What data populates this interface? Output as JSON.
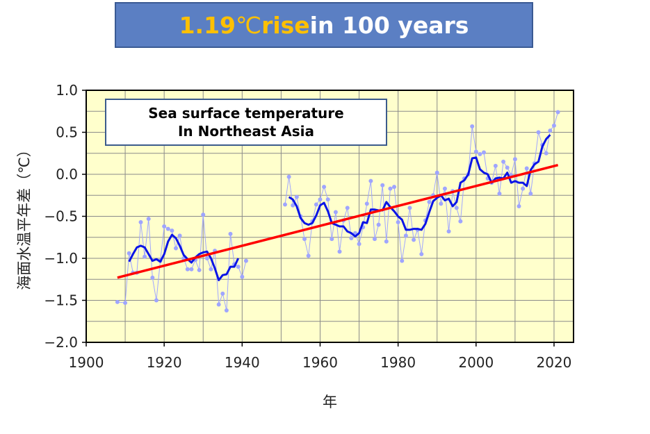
{
  "banner": {
    "highlight_value": "1.19",
    "highlight_unit": "℃",
    "highlight_word": " rise",
    "rest": " in 100 years"
  },
  "inset": {
    "line1": "Sea surface temperature",
    "line2": "In Northeast Asia"
  },
  "chart_data": {
    "type": "line",
    "xlabel": "年",
    "ylabel": "海面水温平年差（℃）",
    "xlim": [
      1900,
      2025
    ],
    "ylim": [
      -2.0,
      1.0
    ],
    "x_ticks": [
      "1900",
      "1920",
      "1940",
      "1960",
      "1980",
      "2000",
      "2020"
    ],
    "y_ticks": [
      "1.0",
      "0.5",
      "0.0",
      "−0.5",
      "−1.0",
      "−1.5",
      "−2.0"
    ],
    "grid": true,
    "colors": {
      "background": "#ffffcc",
      "annual": "#9fa5ff",
      "moving_average": "#0a14e6",
      "trend": "#ff0000"
    },
    "series": [
      {
        "style": "annual",
        "segments": [
          [
            [
              1908,
              -1.52
            ],
            [
              1910,
              -1.53
            ],
            [
              1911,
              -0.94
            ],
            [
              1912,
              -1.17
            ],
            [
              1913,
              -1.17
            ],
            [
              1914,
              -0.57
            ],
            [
              1915,
              -0.98
            ],
            [
              1916,
              -0.53
            ],
            [
              1917,
              -1.23
            ],
            [
              1918,
              -1.5
            ],
            [
              1919,
              -1.03
            ],
            [
              1920,
              -0.62
            ],
            [
              1921,
              -0.65
            ],
            [
              1922,
              -0.67
            ],
            [
              1923,
              -0.88
            ],
            [
              1924,
              -0.73
            ],
            [
              1925,
              -1.0
            ],
            [
              1926,
              -1.13
            ],
            [
              1927,
              -1.13
            ],
            [
              1928,
              -1.02
            ],
            [
              1929,
              -1.14
            ],
            [
              1930,
              -0.48
            ],
            [
              1931,
              -1.0
            ],
            [
              1932,
              -1.13
            ],
            [
              1933,
              -0.91
            ],
            [
              1934,
              -1.55
            ],
            [
              1935,
              -1.42
            ],
            [
              1936,
              -1.62
            ],
            [
              1937,
              -0.71
            ],
            [
              1938,
              -1.07
            ],
            [
              1939,
              -1.1
            ],
            [
              1940,
              -1.22
            ],
            [
              1941,
              -1.03
            ]
          ],
          [
            [
              1951,
              -0.36
            ],
            [
              1952,
              -0.03
            ],
            [
              1953,
              -0.37
            ],
            [
              1954,
              -0.27
            ],
            [
              1955,
              -0.5
            ],
            [
              1956,
              -0.77
            ],
            [
              1957,
              -0.97
            ],
            [
              1958,
              -0.56
            ],
            [
              1959,
              -0.36
            ],
            [
              1960,
              -0.3
            ],
            [
              1961,
              -0.15
            ],
            [
              1962,
              -0.3
            ],
            [
              1963,
              -0.77
            ],
            [
              1964,
              -0.45
            ],
            [
              1965,
              -0.92
            ],
            [
              1966,
              -0.55
            ],
            [
              1967,
              -0.4
            ],
            [
              1968,
              -0.76
            ],
            [
              1969,
              -0.7
            ],
            [
              1970,
              -0.83
            ],
            [
              1971,
              -0.63
            ],
            [
              1972,
              -0.35
            ],
            [
              1973,
              -0.08
            ],
            [
              1974,
              -0.77
            ],
            [
              1975,
              -0.6
            ],
            [
              1976,
              -0.13
            ],
            [
              1977,
              -0.8
            ],
            [
              1978,
              -0.17
            ],
            [
              1979,
              -0.15
            ],
            [
              1980,
              -0.57
            ],
            [
              1981,
              -1.03
            ],
            [
              1982,
              -0.73
            ],
            [
              1983,
              -0.4
            ],
            [
              1984,
              -0.78
            ],
            [
              1985,
              -0.66
            ],
            [
              1986,
              -0.95
            ],
            [
              1987,
              -0.55
            ],
            [
              1988,
              -0.33
            ],
            [
              1989,
              -0.25
            ],
            [
              1990,
              0.02
            ],
            [
              1991,
              -0.35
            ],
            [
              1992,
              -0.17
            ],
            [
              1993,
              -0.68
            ],
            [
              1994,
              -0.2
            ],
            [
              1995,
              -0.4
            ],
            [
              1996,
              -0.56
            ],
            [
              1997,
              -0.05
            ],
            [
              1998,
              0.0
            ],
            [
              1999,
              0.57
            ],
            [
              2000,
              0.27
            ],
            [
              2001,
              0.24
            ],
            [
              2002,
              0.26
            ],
            [
              2003,
              -0.05
            ],
            [
              2004,
              -0.1
            ],
            [
              2005,
              0.1
            ],
            [
              2006,
              -0.23
            ],
            [
              2007,
              0.15
            ],
            [
              2008,
              0.08
            ],
            [
              2009,
              -0.01
            ],
            [
              2010,
              0.18
            ],
            [
              2011,
              -0.38
            ],
            [
              2012,
              -0.17
            ],
            [
              2013,
              0.07
            ],
            [
              2014,
              -0.23
            ],
            [
              2015,
              0.13
            ],
            [
              2016,
              0.5
            ],
            [
              2017,
              0.35
            ],
            [
              2018,
              0.25
            ],
            [
              2019,
              0.52
            ],
            [
              2020,
              0.58
            ],
            [
              2021,
              0.74
            ]
          ]
        ]
      },
      {
        "style": "moving_average",
        "segments": [
          [
            [
              1911,
              -1.04
            ],
            [
              1912,
              -0.95
            ],
            [
              1913,
              -0.87
            ],
            [
              1914,
              -0.85
            ],
            [
              1915,
              -0.87
            ],
            [
              1916,
              -0.95
            ],
            [
              1917,
              -1.03
            ],
            [
              1918,
              -1.01
            ],
            [
              1919,
              -1.04
            ],
            [
              1920,
              -0.95
            ],
            [
              1921,
              -0.8
            ],
            [
              1922,
              -0.72
            ],
            [
              1923,
              -0.76
            ],
            [
              1924,
              -0.85
            ],
            [
              1925,
              -0.96
            ],
            [
              1926,
              -1.01
            ],
            [
              1927,
              -1.05
            ],
            [
              1928,
              -0.99
            ],
            [
              1929,
              -0.95
            ],
            [
              1930,
              -0.93
            ],
            [
              1931,
              -0.92
            ],
            [
              1932,
              -1.0
            ],
            [
              1933,
              -1.12
            ],
            [
              1934,
              -1.26
            ],
            [
              1935,
              -1.2
            ],
            [
              1936,
              -1.19
            ],
            [
              1937,
              -1.1
            ],
            [
              1938,
              -1.1
            ],
            [
              1939,
              -1.0
            ]
          ],
          [
            [
              1952,
              -0.27
            ],
            [
              1953,
              -0.3
            ],
            [
              1954,
              -0.38
            ],
            [
              1955,
              -0.52
            ],
            [
              1956,
              -0.58
            ],
            [
              1957,
              -0.6
            ],
            [
              1958,
              -0.58
            ],
            [
              1959,
              -0.49
            ],
            [
              1960,
              -0.37
            ],
            [
              1961,
              -0.34
            ],
            [
              1962,
              -0.44
            ],
            [
              1963,
              -0.58
            ],
            [
              1964,
              -0.6
            ],
            [
              1965,
              -0.62
            ],
            [
              1966,
              -0.62
            ],
            [
              1967,
              -0.68
            ],
            [
              1968,
              -0.7
            ],
            [
              1969,
              -0.74
            ],
            [
              1970,
              -0.7
            ],
            [
              1971,
              -0.57
            ],
            [
              1972,
              -0.58
            ],
            [
              1973,
              -0.42
            ],
            [
              1974,
              -0.42
            ],
            [
              1975,
              -0.43
            ],
            [
              1976,
              -0.43
            ],
            [
              1977,
              -0.33
            ],
            [
              1978,
              -0.39
            ],
            [
              1979,
              -0.44
            ],
            [
              1980,
              -0.5
            ],
            [
              1981,
              -0.54
            ],
            [
              1982,
              -0.66
            ],
            [
              1983,
              -0.66
            ],
            [
              1984,
              -0.65
            ],
            [
              1985,
              -0.65
            ],
            [
              1986,
              -0.66
            ],
            [
              1987,
              -0.59
            ],
            [
              1988,
              -0.45
            ],
            [
              1989,
              -0.32
            ],
            [
              1990,
              -0.28
            ],
            [
              1991,
              -0.25
            ],
            [
              1992,
              -0.31
            ],
            [
              1993,
              -0.29
            ],
            [
              1994,
              -0.38
            ],
            [
              1995,
              -0.33
            ],
            [
              1996,
              -0.1
            ],
            [
              1997,
              -0.07
            ],
            [
              1998,
              0.0
            ],
            [
              1999,
              0.19
            ],
            [
              2000,
              0.2
            ],
            [
              2001,
              0.06
            ],
            [
              2002,
              0.02
            ],
            [
              2003,
              0.0
            ],
            [
              2004,
              -0.1
            ],
            [
              2005,
              -0.05
            ],
            [
              2006,
              -0.04
            ],
            [
              2007,
              -0.05
            ],
            [
              2008,
              0.02
            ],
            [
              2009,
              -0.1
            ],
            [
              2010,
              -0.08
            ],
            [
              2011,
              -0.1
            ],
            [
              2012,
              -0.1
            ],
            [
              2013,
              -0.14
            ],
            [
              2014,
              0.05
            ],
            [
              2015,
              0.12
            ],
            [
              2016,
              0.15
            ],
            [
              2017,
              0.33
            ],
            [
              2018,
              0.42
            ],
            [
              2019,
              0.47
            ]
          ]
        ]
      },
      {
        "style": "trend",
        "segments": [
          [
            [
              1908,
              -1.23
            ],
            [
              2021,
              0.11
            ]
          ]
        ]
      }
    ]
  }
}
